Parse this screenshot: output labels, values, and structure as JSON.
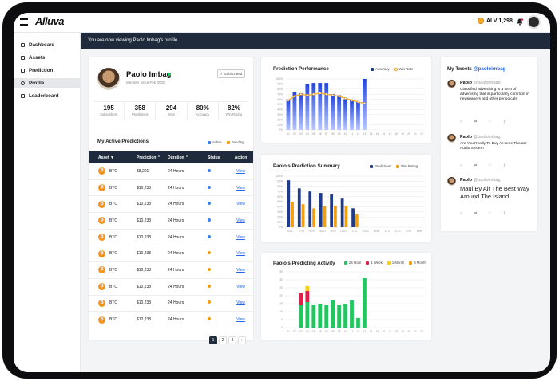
{
  "app": {
    "logo": "Alluva",
    "balance": "ALV 1,298"
  },
  "sidebar": {
    "items": [
      {
        "label": "Dashboard",
        "icon": "dashboard-icon"
      },
      {
        "label": "Assets",
        "icon": "assets-icon"
      },
      {
        "label": "Prediction",
        "icon": "prediction-icon"
      },
      {
        "label": "Profile",
        "icon": "profile-icon",
        "active": true
      },
      {
        "label": "Leaderboard",
        "icon": "leaderboard-icon"
      }
    ]
  },
  "banner": "You are now viewing Paolo Imbag's profile.",
  "profile": {
    "name": "Paolo Imbag",
    "member_since": "Member since Feb 2020",
    "subscribe_label": "✓ Subscribed",
    "stats": [
      {
        "value": "195",
        "label": "Subscribers"
      },
      {
        "value": "358",
        "label": "Predictions"
      },
      {
        "value": "294",
        "label": "Wins"
      },
      {
        "value": "80%",
        "label": "Accuracy"
      },
      {
        "value": "82%",
        "label": "Win Rating"
      }
    ]
  },
  "active_predictions": {
    "title": "My Active Predictions",
    "legend": [
      {
        "label": "Active",
        "color": "#3b82f6"
      },
      {
        "label": "Pending",
        "color": "#f59e0b"
      }
    ],
    "columns": [
      "Asset ▼",
      "Prediction ⌃",
      "Duration ⌃",
      "Status",
      "Action"
    ],
    "rows": [
      {
        "asset": "BTC",
        "prediction": "$8,201",
        "duration": "24 Hours",
        "status": "active",
        "action": "View"
      },
      {
        "asset": "BTC",
        "prediction": "$10,238",
        "duration": "24 Hours",
        "status": "active",
        "action": "View"
      },
      {
        "asset": "BTC",
        "prediction": "$10,238",
        "duration": "24 Hours",
        "status": "active",
        "action": "View"
      },
      {
        "asset": "BTC",
        "prediction": "$10,238",
        "duration": "24 Hours",
        "status": "active",
        "action": "View"
      },
      {
        "asset": "BTC",
        "prediction": "$10,238",
        "duration": "24 Hours",
        "status": "active",
        "action": "View"
      },
      {
        "asset": "BTC",
        "prediction": "$10,238",
        "duration": "24 Hours",
        "status": "pending",
        "action": "View"
      },
      {
        "asset": "BTC",
        "prediction": "$10,238",
        "duration": "24 Hours",
        "status": "pending",
        "action": "View"
      },
      {
        "asset": "BTC",
        "prediction": "$10,238",
        "duration": "24 Hours",
        "status": "pending",
        "action": "View"
      },
      {
        "asset": "BTC",
        "prediction": "$10,238",
        "duration": "24 Hours",
        "status": "pending",
        "action": "View"
      },
      {
        "asset": "BTC",
        "prediction": "$10,238",
        "duration": "24 Hours",
        "status": "pending",
        "action": "View"
      }
    ],
    "pages": [
      "1",
      "2",
      "3",
      "›"
    ]
  },
  "tweets": {
    "title": "My Tweets",
    "handle": "@paoloimbag",
    "items": [
      {
        "name": "Paolo",
        "handle": "@paoloimbag",
        "text": "Classified advertising is a form of advertising that is particularly common in newspapers and other periodicals."
      },
      {
        "name": "Paolo",
        "handle": "@paoloimbag",
        "text": "Are You Ready To Buy A Home Theater Audio System"
      },
      {
        "name": "Paolo",
        "handle": "@paoloimbag",
        "text": "Maui By Air The Best Way Around The Island"
      }
    ]
  },
  "colors": {
    "navy": "#1f2a3c",
    "blue": "#3b82f6",
    "orange": "#f59e0b",
    "green": "#22c55e",
    "red": "#e11d48",
    "yellow": "#facc15",
    "darkblue": "#1e3a8a"
  },
  "chart_data": [
    {
      "type": "bar",
      "title": "Prediction Performance",
      "categories": [
        "01",
        "02",
        "03",
        "04",
        "05",
        "06",
        "07",
        "08",
        "09",
        "10",
        "11",
        "12",
        "13",
        "14",
        "15",
        "16",
        "17",
        "18",
        "19",
        "20",
        "21",
        "22"
      ],
      "series": [
        {
          "name": "Accuracy",
          "type": "bar",
          "values": [
            60,
            75,
            72,
            90,
            92,
            92,
            92,
            70,
            68,
            60,
            58,
            55,
            100,
            0,
            0,
            0,
            0,
            0,
            0,
            0,
            0,
            0
          ]
        },
        {
          "name": "Win Rate",
          "type": "line",
          "values": [
            58,
            66,
            70,
            68,
            70,
            72,
            70,
            68,
            66,
            62,
            58,
            55,
            52,
            null,
            null,
            null,
            null,
            null,
            null,
            null,
            null,
            null
          ]
        }
      ],
      "ylim": [
        0,
        100
      ],
      "yticks": [
        "100%",
        "90%",
        "80%",
        "70%",
        "60%",
        "50%",
        "40%",
        "30%",
        "20%",
        "10%",
        "0%"
      ]
    },
    {
      "type": "bar",
      "title": "Paolo's Prediction Summary",
      "categories": [
        "BTC",
        "ETH",
        "XRP",
        "BCH",
        "BSV",
        "USDT",
        "LTC",
        "EOS",
        "BNB",
        "XTZ",
        "ETC",
        "TRX",
        "XMR"
      ],
      "series": [
        {
          "name": "Predictions",
          "values": [
            92,
            76,
            70,
            67,
            64,
            56,
            37,
            0,
            0,
            0,
            0,
            0,
            0
          ]
        },
        {
          "name": "Win Rating",
          "values": [
            50,
            45,
            37,
            41,
            42,
            42,
            25,
            0,
            0,
            0,
            0,
            0,
            0
          ]
        }
      ],
      "ylim": [
        0,
        100
      ],
      "yticks": [
        "100%",
        "90%",
        "80%",
        "70%",
        "60%",
        "50%",
        "40%",
        "30%",
        "20%",
        "10%",
        "0%"
      ]
    },
    {
      "type": "bar",
      "title": "Paolo's Predicting Activity",
      "stacked": true,
      "categories": [
        "01",
        "02",
        "03",
        "04",
        "05",
        "06",
        "07",
        "08",
        "09",
        "10",
        "11",
        "12",
        "13",
        "14",
        "15",
        "16",
        "17",
        "18",
        "19",
        "20",
        "21",
        "22"
      ],
      "series": [
        {
          "name": "24 Hour",
          "values": [
            0,
            0,
            14,
            16,
            14,
            15,
            14,
            17,
            14,
            15,
            17,
            6,
            31,
            0,
            0,
            0,
            0,
            0,
            0,
            0,
            0,
            0
          ]
        },
        {
          "name": "1 Week",
          "values": [
            0,
            0,
            8,
            7,
            0,
            0,
            0,
            0,
            0,
            0,
            0,
            0,
            0,
            0,
            0,
            0,
            0,
            0,
            0,
            0,
            0,
            0
          ]
        },
        {
          "name": "1 Month",
          "values": [
            0,
            0,
            0,
            3,
            0,
            0,
            0,
            0,
            0,
            0,
            0,
            0,
            0,
            0,
            0,
            0,
            0,
            0,
            0,
            0,
            0,
            0
          ]
        },
        {
          "name": "6 Month",
          "values": [
            0,
            0,
            0,
            0,
            0,
            0,
            0,
            0,
            0,
            0,
            0,
            0,
            0,
            0,
            0,
            0,
            0,
            0,
            0,
            0,
            0,
            0
          ]
        }
      ],
      "ylim": [
        0,
        35
      ],
      "yticks": [
        "35",
        "30",
        "25",
        "20",
        "15",
        "10",
        "5",
        "0"
      ]
    }
  ]
}
